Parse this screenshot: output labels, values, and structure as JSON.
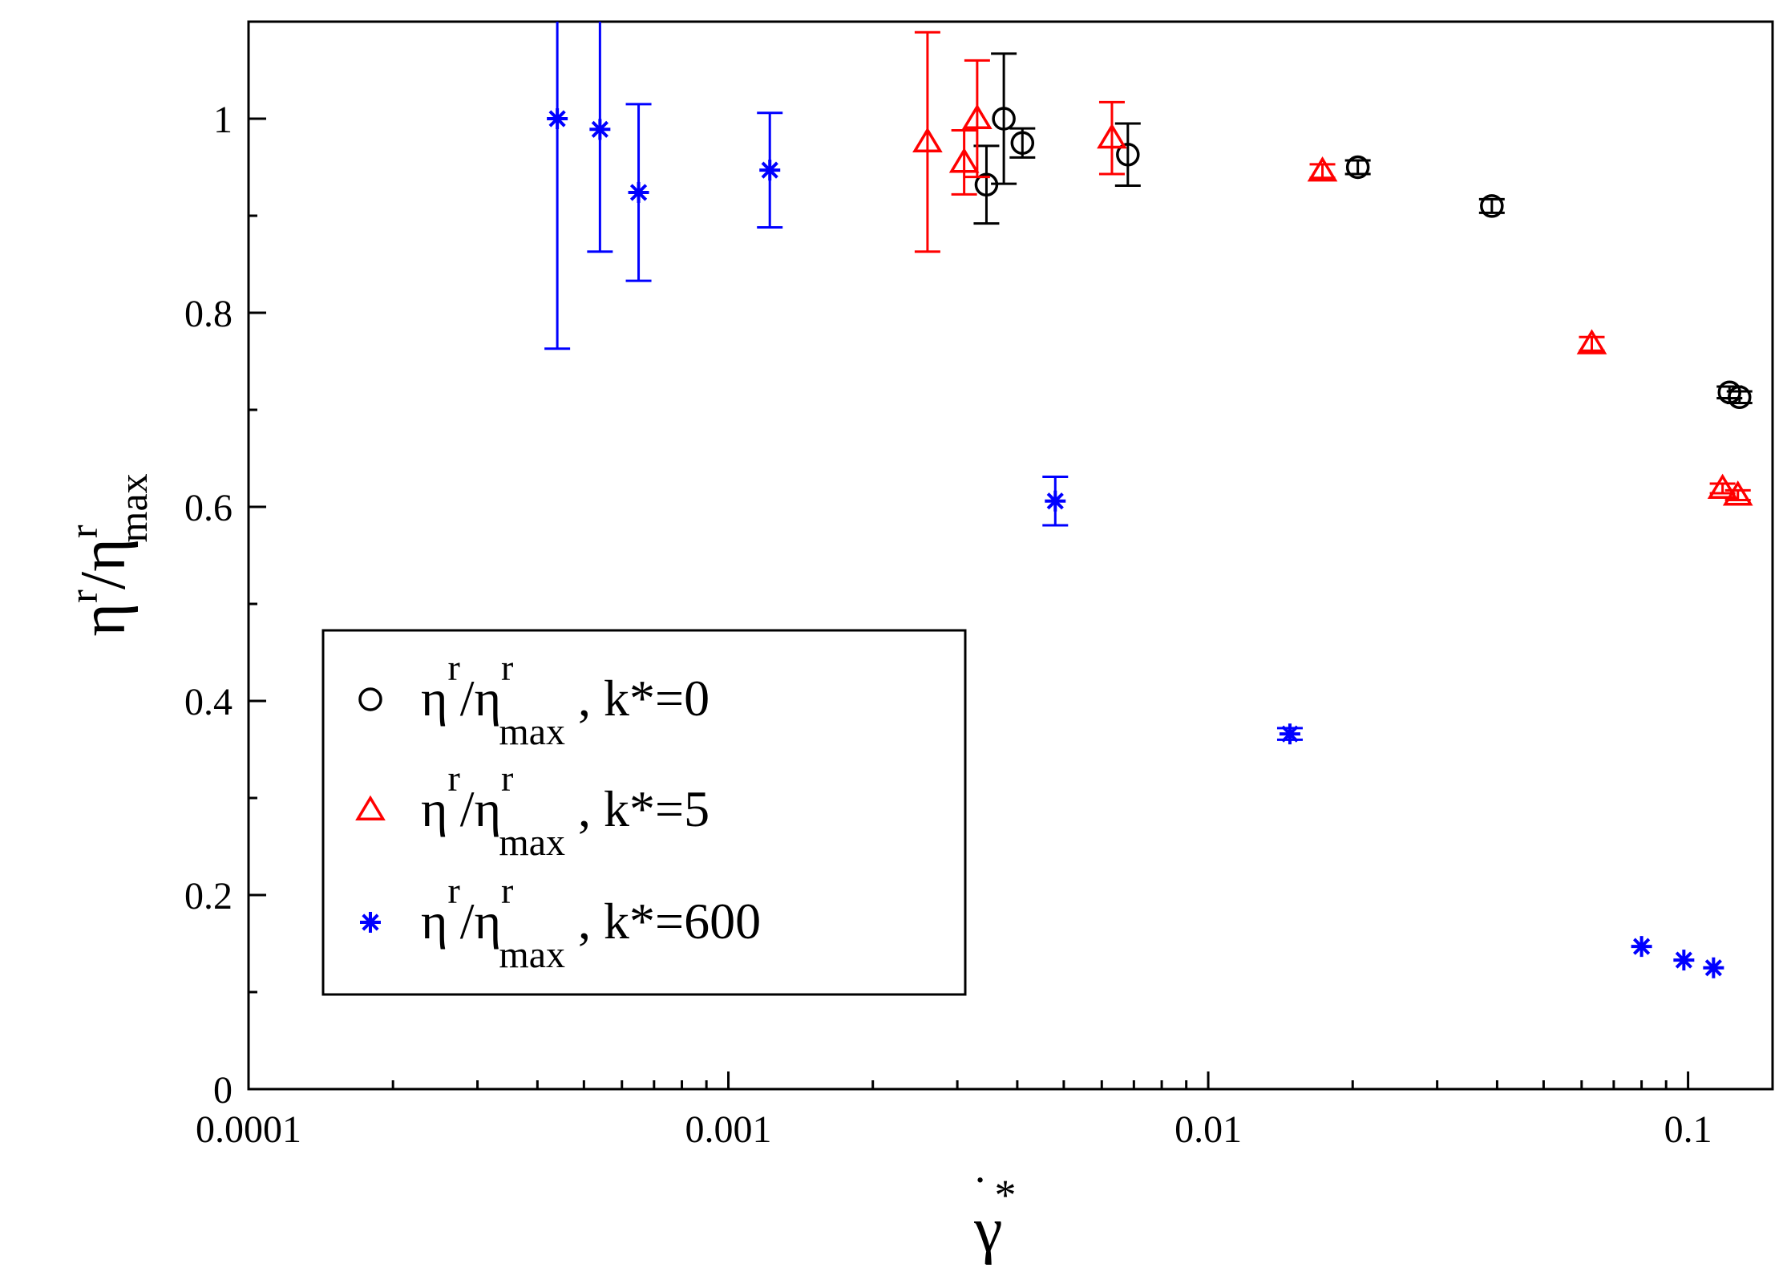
{
  "chart_data": {
    "type": "scatter",
    "title": "",
    "xlabel": "γ̇*",
    "ylabel": "ηʳ/ηʳmax",
    "x_scale": "log",
    "xlim": [
      0.0001,
      0.15
    ],
    "ylim": [
      0,
      1.1
    ],
    "x_ticks": [
      {
        "value": 0.0001,
        "label": "0.0001"
      },
      {
        "value": 0.001,
        "label": "0.001"
      },
      {
        "value": 0.01,
        "label": "0.01"
      },
      {
        "value": 0.1,
        "label": "0.1"
      }
    ],
    "y_ticks": [
      {
        "value": 0,
        "label": "0"
      },
      {
        "value": 0.2,
        "label": "0.2"
      },
      {
        "value": 0.4,
        "label": "0.4"
      },
      {
        "value": 0.6,
        "label": "0.6"
      },
      {
        "value": 0.8,
        "label": "0.8"
      },
      {
        "value": 1,
        "label": "1"
      }
    ],
    "grid": false,
    "legend_position": "lower-left",
    "legend": [
      {
        "series": 0,
        "main": "η",
        "sup1": "r",
        "slash": "/η",
        "sup2": "r",
        "sub": "max",
        "tail": ", k*=0"
      },
      {
        "series": 1,
        "main": "η",
        "sup1": "r",
        "slash": "/η",
        "sup2": "r",
        "sub": "max",
        "tail": ", k*=5"
      },
      {
        "series": 2,
        "main": "η",
        "sup1": "r",
        "slash": "/η",
        "sup2": "r",
        "sub": "max",
        "tail": ", k*=600"
      }
    ],
    "series": [
      {
        "marker": "circle",
        "color": "#000000",
        "points": [
          {
            "x": 0.00345,
            "y": 0.932,
            "err": 0.04
          },
          {
            "x": 0.00375,
            "y": 1.0,
            "err": 0.067
          },
          {
            "x": 0.0041,
            "y": 0.975,
            "err": 0.015
          },
          {
            "x": 0.0068,
            "y": 0.963,
            "err": 0.032
          },
          {
            "x": 0.0205,
            "y": 0.95,
            "err": 0.007
          },
          {
            "x": 0.039,
            "y": 0.91,
            "err": 0.007
          },
          {
            "x": 0.122,
            "y": 0.718,
            "err": 0.006
          },
          {
            "x": 0.128,
            "y": 0.713,
            "err": 0.006
          }
        ]
      },
      {
        "marker": "triangle",
        "color": "#ff0000",
        "points": [
          {
            "x": 0.0026,
            "y": 0.976,
            "err": 0.113
          },
          {
            "x": 0.0031,
            "y": 0.955,
            "err": 0.033
          },
          {
            "x": 0.0033,
            "y": 1.0,
            "err": 0.06
          },
          {
            "x": 0.0063,
            "y": 0.98,
            "err": 0.037
          },
          {
            "x": 0.0173,
            "y": 0.946,
            "err": 0.007
          },
          {
            "x": 0.063,
            "y": 0.768,
            "err": 0.007
          },
          {
            "x": 0.118,
            "y": 0.619,
            "err": 0.005
          },
          {
            "x": 0.127,
            "y": 0.612,
            "err": 0.005
          }
        ]
      },
      {
        "marker": "asterisk",
        "color": "#0000ff",
        "points": [
          {
            "x": 0.00044,
            "y": 1.0,
            "err": 0.237
          },
          {
            "x": 0.00054,
            "y": 0.989,
            "err": 0.126
          },
          {
            "x": 0.00065,
            "y": 0.924,
            "err": 0.091
          },
          {
            "x": 0.00122,
            "y": 0.947,
            "err": 0.059
          },
          {
            "x": 0.0048,
            "y": 0.606,
            "err": 0.025
          },
          {
            "x": 0.0148,
            "y": 0.366,
            "err": 0.006
          },
          {
            "x": 0.08,
            "y": 0.147,
            "err": 0
          },
          {
            "x": 0.098,
            "y": 0.133,
            "err": 0
          },
          {
            "x": 0.113,
            "y": 0.125,
            "err": 0
          }
        ]
      }
    ]
  }
}
